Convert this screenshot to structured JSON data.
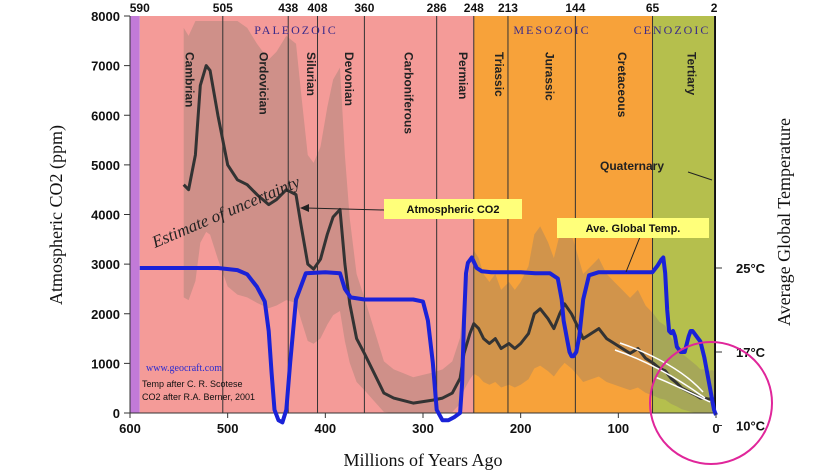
{
  "chart_data": {
    "type": "line",
    "xlabel": "Millions of Years Ago",
    "ylabel": "Atmospheric CO2 (ppm)",
    "y2label": "Average Global Temperature",
    "xlim": [
      600,
      0
    ],
    "ylim": [
      0,
      8000
    ],
    "x_ticks": [
      "600",
      "500",
      "400",
      "300",
      "200",
      "100",
      "0"
    ],
    "y_ticks": [
      "0",
      "1000",
      "2000",
      "3000",
      "4000",
      "5000",
      "6000",
      "7000",
      "8000"
    ],
    "y2_ticks": [
      "25°C",
      "17°C",
      "10°C"
    ],
    "top_ticks": [
      "590",
      "505",
      "438",
      "408",
      "360",
      "286",
      "248",
      "213",
      "144",
      "65",
      "2"
    ],
    "eras": [
      {
        "name": "PALEOZOIC",
        "from": 590,
        "to": 248
      },
      {
        "name": "MESOZOIC",
        "from": 248,
        "to": 65
      },
      {
        "name": "CENOZOIC",
        "from": 65,
        "to": 0
      }
    ],
    "periods": [
      {
        "name": "Cambrian",
        "from": 590,
        "to": 505
      },
      {
        "name": "Ordovician",
        "from": 505,
        "to": 438
      },
      {
        "name": "Silurian",
        "from": 438,
        "to": 408
      },
      {
        "name": "Devonian",
        "from": 408,
        "to": 360
      },
      {
        "name": "Carboniferous",
        "from": 360,
        "to": 286
      },
      {
        "name": "Permian",
        "from": 286,
        "to": 248
      },
      {
        "name": "Triassic",
        "from": 248,
        "to": 213
      },
      {
        "name": "Jurassic",
        "from": 213,
        "to": 144
      },
      {
        "name": "Cretaceous",
        "from": 144,
        "to": 65
      },
      {
        "name": "Tertiary",
        "from": 65,
        "to": 2
      }
    ],
    "labels": {
      "quaternary": "Quaternary",
      "co2_callout": "Atmospheric CO2",
      "temp_callout": "Ave. Global Temp.",
      "uncertainty": "Estimate of uncertainty",
      "url": "www.geocraft.com",
      "credit_1": "Temp after C. R. Scotese",
      "credit_2": "CO2 after R.A. Berner, 2001"
    },
    "series": [
      {
        "name": "Atmospheric CO2",
        "color": "#333333",
        "axis": "left",
        "x": [
          545,
          540,
          533,
          528,
          522,
          518,
          510,
          500,
          490,
          480,
          470,
          458,
          450,
          440,
          430,
          425,
          418,
          412,
          405,
          398,
          392,
          385,
          380,
          375,
          368,
          360,
          350,
          340,
          330,
          320,
          310,
          300,
          290,
          280,
          270,
          262,
          258,
          252,
          248,
          243,
          238,
          232,
          226,
          220,
          212,
          206,
          200,
          192,
          186,
          180,
          172,
          166,
          160,
          155,
          148,
          143,
          136,
          128,
          120,
          112,
          104,
          96,
          88,
          80,
          72,
          64,
          58,
          52,
          46,
          40,
          35,
          30,
          25,
          20,
          16,
          12,
          8,
          4,
          2
        ],
        "y": [
          4600,
          4500,
          5200,
          6600,
          7000,
          6900,
          6000,
          5000,
          4700,
          4600,
          4400,
          4200,
          4300,
          4500,
          4400,
          3800,
          3000,
          2900,
          3100,
          3600,
          3950,
          4100,
          3000,
          2200,
          1500,
          1200,
          800,
          400,
          300,
          250,
          200,
          230,
          260,
          300,
          400,
          700,
          1200,
          1600,
          1800,
          1700,
          1500,
          1400,
          1500,
          1300,
          1400,
          1300,
          1400,
          1600,
          2000,
          2100,
          1900,
          1700,
          2000,
          2200,
          2000,
          1800,
          1500,
          1600,
          1700,
          1500,
          1400,
          1300,
          1200,
          1300,
          1100,
          1000,
          900,
          850,
          700,
          600,
          500,
          450,
          400,
          350,
          300,
          300,
          280,
          290,
          280
        ]
      },
      {
        "name": "Ave. Global Temp.",
        "color": "#1a22d8",
        "axis": "right",
        "x": [
          590,
          570,
          550,
          530,
          510,
          490,
          480,
          470,
          462,
          458,
          455,
          452,
          448,
          444,
          440,
          436,
          430,
          420,
          400,
          385,
          380,
          374,
          360,
          350,
          340,
          330,
          320,
          310,
          300,
          295,
          290,
          286,
          280,
          274,
          268,
          262,
          260,
          258,
          256,
          254,
          250,
          245,
          240,
          230,
          220,
          200,
          185,
          170,
          162,
          158,
          156,
          152,
          150,
          148,
          146,
          143,
          140,
          136,
          130,
          120,
          100,
          80,
          65,
          60,
          56,
          54,
          52,
          50,
          48,
          46,
          44,
          42,
          40,
          36,
          32,
          28,
          26,
          24,
          20,
          16,
          12,
          8,
          5,
          2,
          0
        ],
        "y": [
          25.0,
          25.0,
          25.0,
          25.0,
          25.0,
          24.8,
          24.4,
          23.2,
          21.8,
          19.0,
          15.0,
          11.5,
          10.5,
          10.3,
          11.5,
          16.0,
          22.0,
          24.5,
          24.6,
          24.5,
          23.0,
          22.2,
          22.0,
          22.0,
          22.0,
          22.0,
          22.0,
          22.0,
          21.8,
          20.0,
          16.0,
          11.5,
          10.5,
          10.5,
          10.8,
          11.2,
          14.0,
          20.0,
          24.5,
          25.5,
          26.0,
          25.0,
          24.7,
          24.6,
          24.6,
          24.6,
          24.5,
          24.5,
          24.0,
          22.0,
          20.0,
          18.0,
          17.0,
          16.6,
          16.6,
          17.0,
          18.5,
          22.0,
          24.3,
          24.6,
          24.6,
          24.6,
          24.6,
          25.2,
          25.8,
          26.0,
          24.5,
          21.0,
          19.0,
          18.8,
          19.0,
          18.5,
          17.5,
          17.0,
          17.0,
          18.5,
          19.0,
          19.0,
          18.5,
          18.0,
          16.5,
          14.5,
          13.0,
          11.5,
          11.0
        ]
      }
    ]
  }
}
